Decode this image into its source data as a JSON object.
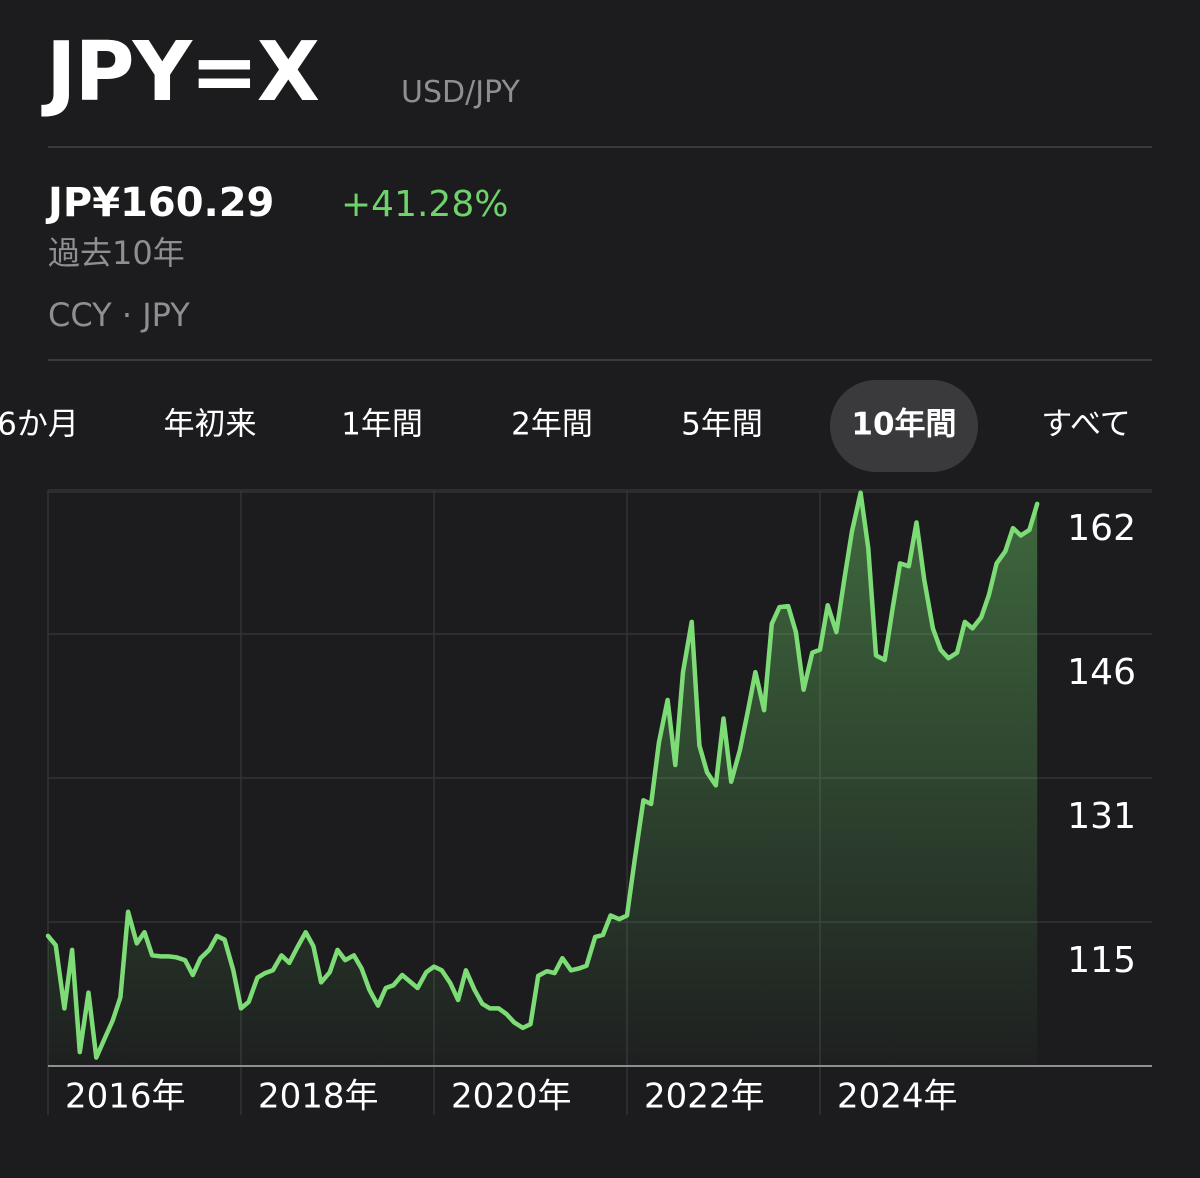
{
  "header": {
    "title": "JPY=X",
    "subtitle": "USD/JPY"
  },
  "quote": {
    "price": "JP¥160.29",
    "change": "+41.28%",
    "period": "過去10年",
    "exchange": "CCY · JPY"
  },
  "tabs": [
    "6か月",
    "年初来",
    "1年間",
    "2年間",
    "5年間",
    "10年間",
    "すべて"
  ],
  "selected_tab": "10年間",
  "chart_data": {
    "type": "line",
    "color": "#7ddc76",
    "fill": true,
    "grid": true,
    "xlim": [
      2016,
      2027.44
    ],
    "ylim": [
      99.8,
      161.8
    ],
    "xticks": [
      {
        "value": 2016,
        "label": "2016年"
      },
      {
        "value": 2018,
        "label": "2018年"
      },
      {
        "value": 2020,
        "label": "2020年"
      },
      {
        "value": 2022,
        "label": "2022年"
      },
      {
        "value": 2024,
        "label": "2024年"
      }
    ],
    "yticks": [
      {
        "value": 115.3,
        "label": "115"
      },
      {
        "value": 130.8,
        "label": "131"
      },
      {
        "value": 146.3,
        "label": "146"
      },
      {
        "value": 161.8,
        "label": "162"
      }
    ],
    "x": [
      2016.0,
      2016.08,
      2016.17,
      2016.25,
      2016.33,
      2016.42,
      2016.5,
      2016.58,
      2016.67,
      2016.75,
      2016.83,
      2016.92,
      2017.0,
      2017.08,
      2017.17,
      2017.25,
      2017.33,
      2017.42,
      2017.5,
      2017.58,
      2017.67,
      2017.75,
      2017.83,
      2017.92,
      2018.0,
      2018.08,
      2018.17,
      2018.25,
      2018.33,
      2018.42,
      2018.5,
      2018.58,
      2018.67,
      2018.75,
      2018.83,
      2018.92,
      2019.0,
      2019.08,
      2019.17,
      2019.25,
      2019.33,
      2019.42,
      2019.5,
      2019.58,
      2019.67,
      2019.75,
      2019.83,
      2019.92,
      2020.0,
      2020.08,
      2020.17,
      2020.25,
      2020.33,
      2020.42,
      2020.5,
      2020.58,
      2020.67,
      2020.75,
      2020.83,
      2020.92,
      2021.0,
      2021.08,
      2021.17,
      2021.25,
      2021.33,
      2021.42,
      2021.5,
      2021.58,
      2021.67,
      2021.75,
      2021.83,
      2021.92,
      2022.0,
      2022.08,
      2022.17,
      2022.25,
      2022.33,
      2022.42,
      2022.5,
      2022.58,
      2022.67,
      2022.75,
      2022.83,
      2022.92,
      2023.0,
      2023.08,
      2023.17,
      2023.25,
      2023.33,
      2023.42,
      2023.5,
      2023.58,
      2023.67,
      2023.75,
      2023.83,
      2023.92,
      2024.0,
      2024.08,
      2024.17,
      2024.25,
      2024.33,
      2024.42,
      2024.5,
      2024.58,
      2024.67,
      2024.75,
      2024.83,
      2024.92,
      2025.0,
      2025.08,
      2025.17,
      2025.25,
      2025.33,
      2025.42,
      2025.5,
      2025.58,
      2025.67,
      2025.75,
      2025.83,
      2025.92,
      2026.0,
      2026.08,
      2026.17,
      2026.25
    ],
    "values": [
      113.8,
      112.8,
      106.0,
      112.3,
      101.3,
      107.7,
      100.7,
      102.6,
      104.7,
      107.2,
      116.4,
      113.0,
      114.2,
      111.7,
      111.6,
      111.6,
      111.5,
      111.2,
      109.6,
      111.4,
      112.3,
      113.8,
      113.4,
      110.1,
      106.0,
      106.7,
      109.3,
      109.8,
      110.1,
      111.7,
      110.9,
      112.5,
      114.2,
      112.7,
      108.8,
      109.9,
      112.3,
      111.2,
      111.7,
      110.3,
      108.0,
      106.3,
      108.2,
      108.5,
      109.6,
      108.9,
      108.2,
      109.9,
      110.5,
      110.1,
      108.7,
      106.9,
      110.1,
      108.0,
      106.5,
      106.0,
      106.0,
      105.4,
      104.5,
      103.9,
      104.3,
      109.5,
      110.0,
      109.8,
      111.4,
      110.1,
      110.3,
      110.6,
      113.7,
      113.9,
      116.0,
      115.6,
      116.0,
      122.0,
      128.4,
      128.0,
      134.6,
      139.2,
      132.2,
      142.2,
      147.6,
      134.3,
      131.4,
      130.0,
      137.2,
      130.4,
      133.8,
      137.9,
      142.2,
      138.1,
      147.4,
      149.2,
      149.3,
      146.5,
      140.3,
      144.3,
      144.6,
      149.4,
      146.5,
      152.1,
      157.3,
      161.5,
      155.5,
      144.0,
      143.5,
      148.9,
      153.9,
      153.6,
      158.3,
      152.1,
      146.9,
      144.6,
      143.7,
      144.3,
      147.6,
      146.9,
      148.1,
      150.5,
      153.9,
      155.2,
      157.7,
      156.9,
      157.5,
      160.3
    ]
  }
}
